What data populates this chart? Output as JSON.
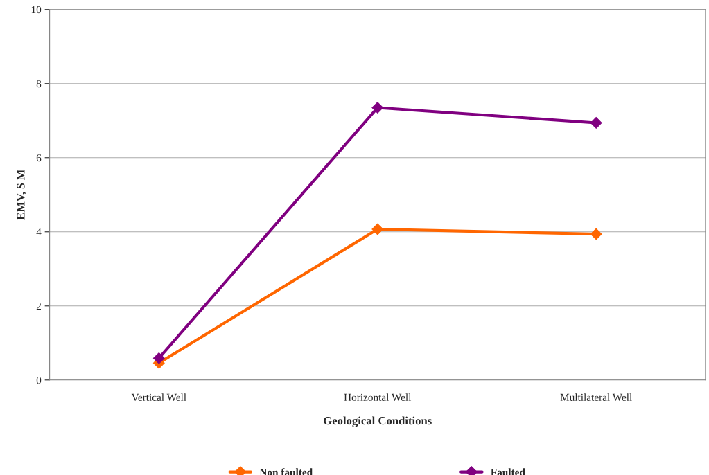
{
  "chart_data": {
    "type": "line",
    "xlabel": "Geological Conditions",
    "ylabel": "EMV, $ M",
    "categories": [
      "Vertical Well",
      "Horizontal Well",
      "Multilateral Well"
    ],
    "series": [
      {
        "name": "Non faulted",
        "color": "#ff6600",
        "values": [
          0.46,
          4.07,
          3.94
        ]
      },
      {
        "name": "Faulted",
        "color": "#800080",
        "values": [
          0.59,
          7.35,
          6.94
        ]
      }
    ],
    "ylim": [
      0,
      10
    ],
    "yticks": [
      0,
      2,
      4,
      6,
      8,
      10
    ],
    "grid": "y",
    "legend": "bottom",
    "marker": "diamond",
    "line_style": "solid"
  }
}
